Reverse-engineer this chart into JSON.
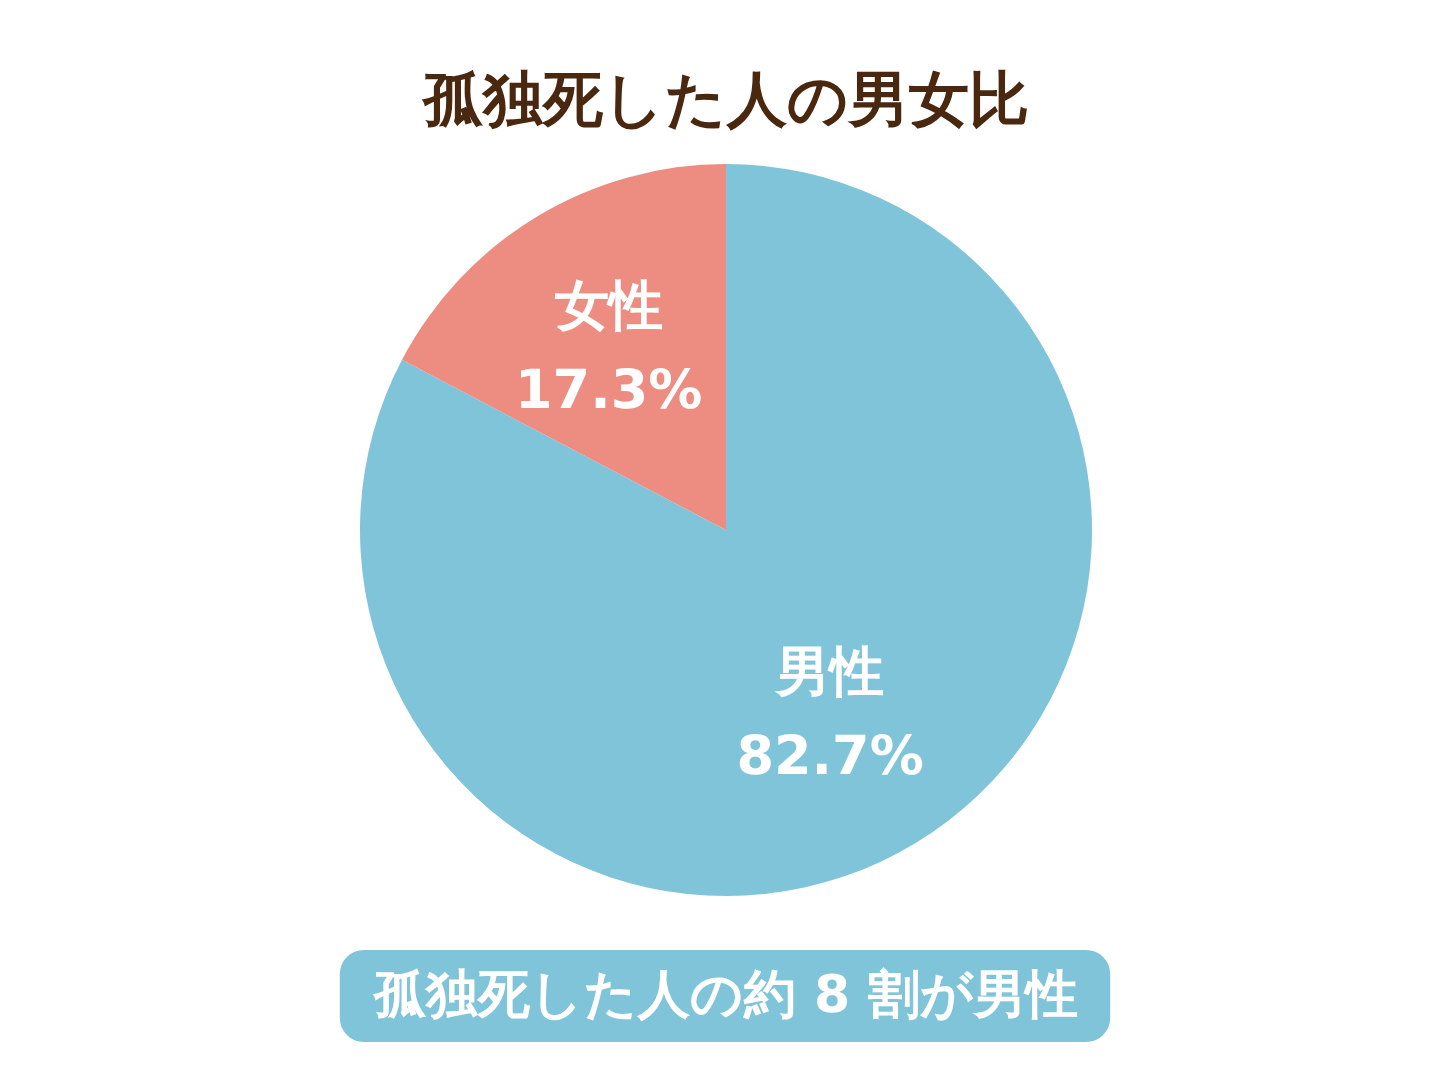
{
  "chart_data": {
    "type": "pie",
    "title": "孤独死した人の男女比",
    "categories": [
      "男性",
      "女性"
    ],
    "values": [
      82.7,
      17.3
    ],
    "colors": [
      "#80c4da",
      "#ed8d82"
    ],
    "value_labels": [
      "82.7%",
      "17.3%"
    ],
    "annotations": [
      "孤独死した人の約 8 割が男性"
    ]
  }
}
